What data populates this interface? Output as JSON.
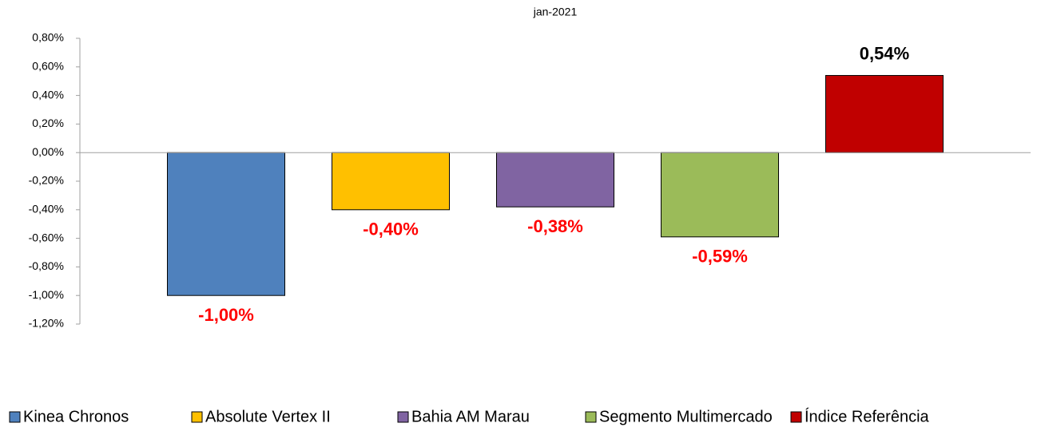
{
  "chart_data": {
    "type": "bar",
    "title": "jan-2021",
    "categories": [
      "jan-2021"
    ],
    "series": [
      {
        "name": "Kinea Chronos",
        "color": "#4f81bd",
        "values": [
          -1.0
        ],
        "value_labels": [
          "-1,00%"
        ]
      },
      {
        "name": "Absolute Vertex II",
        "color": "#ffc000",
        "values": [
          -0.4
        ],
        "value_labels": [
          "-0,40%"
        ]
      },
      {
        "name": "Bahia AM Marau",
        "color": "#8064a2",
        "values": [
          -0.38
        ],
        "value_labels": [
          "-0,38%"
        ]
      },
      {
        "name": "Segmento Multimercado",
        "color": "#9bbb59",
        "values": [
          -0.59
        ],
        "value_labels": [
          "-0,59%"
        ]
      },
      {
        "name": "Índice Referência",
        "color": "#c00000",
        "values": [
          0.54
        ],
        "value_labels": [
          "0,54%"
        ]
      }
    ],
    "label_colors": {
      "negative": "#ff0000",
      "positive": "#000000"
    },
    "ylim": [
      -1.2,
      0.8
    ],
    "yticks": [
      {
        "value": 0.8,
        "label": "0,80%"
      },
      {
        "value": 0.6,
        "label": "0,60%"
      },
      {
        "value": 0.4,
        "label": "0,40%"
      },
      {
        "value": 0.2,
        "label": "0,20%"
      },
      {
        "value": 0,
        "label": "0,00%"
      },
      {
        "value": -0.2,
        "label": "-0,20%"
      },
      {
        "value": -0.4,
        "label": "-0,40%"
      },
      {
        "value": -0.6,
        "label": "-0,60%"
      },
      {
        "value": -0.8,
        "label": "-0,80%"
      },
      {
        "value": -1.0,
        "label": "-1,00%"
      },
      {
        "value": -1.2,
        "label": "-1,20%"
      }
    ],
    "grid": false,
    "legend": "bottom"
  }
}
